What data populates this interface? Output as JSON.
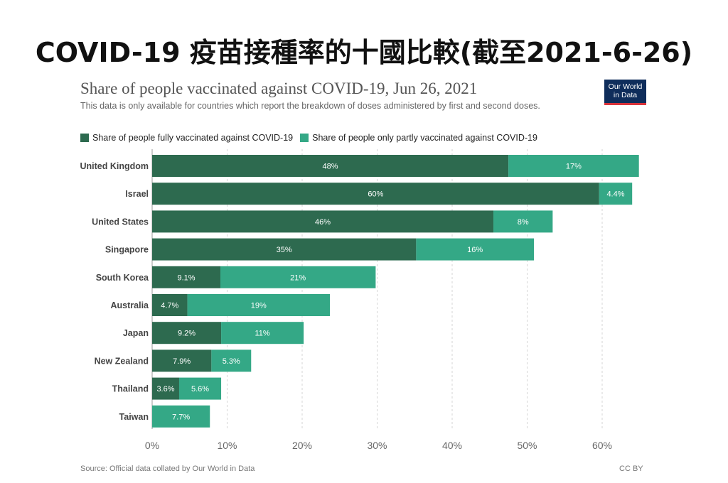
{
  "headline": "COVID-19 疫苗接種率的十國比較(截至2021-6-26)",
  "logo": {
    "line1": "Our World",
    "line2": "in Data",
    "bg": "#0f2d5b",
    "accent": "#d9333a"
  },
  "footer": {
    "source": "Source: Official data collated by Our World in Data",
    "license": "CC BY"
  },
  "chart_data": {
    "type": "bar",
    "orientation": "horizontal",
    "stacked": true,
    "title": "Share of people vaccinated against COVID-19, Jun 26, 2021",
    "subtitle": "This data is only available for countries which report the breakdown of doses administered by first and second doses.",
    "legend_position": "top-left",
    "categories": [
      "United Kingdom",
      "Israel",
      "United States",
      "Singapore",
      "South Korea",
      "Australia",
      "Japan",
      "New Zealand",
      "Thailand",
      "Taiwan"
    ],
    "series": [
      {
        "name": "Share of people fully vaccinated against COVID-19",
        "color": "#2d6a4f",
        "values": [
          47.5,
          59.6,
          45.5,
          35.2,
          9.1,
          4.7,
          9.2,
          7.9,
          3.6,
          0
        ],
        "labels": [
          "48%",
          "60%",
          "46%",
          "35%",
          "9.1%",
          "4.7%",
          "9.2%",
          "7.9%",
          "3.6%",
          ""
        ]
      },
      {
        "name": "Share of people only partly vaccinated against COVID-19",
        "color": "#34a886",
        "values": [
          17.4,
          4.4,
          7.9,
          15.7,
          20.7,
          19.0,
          11.0,
          5.3,
          5.6,
          7.7
        ],
        "labels": [
          "17%",
          "4.4%",
          "8%",
          "16%",
          "21%",
          "19%",
          "11%",
          "5.3%",
          "5.6%",
          "7.7%"
        ]
      }
    ],
    "xlim": [
      0,
      65
    ],
    "xticks": [
      0,
      10,
      20,
      30,
      40,
      50,
      60
    ],
    "xtick_labels": [
      "0%",
      "10%",
      "20%",
      "30%",
      "40%",
      "50%",
      "60%"
    ],
    "grid": "vertical dashed"
  }
}
